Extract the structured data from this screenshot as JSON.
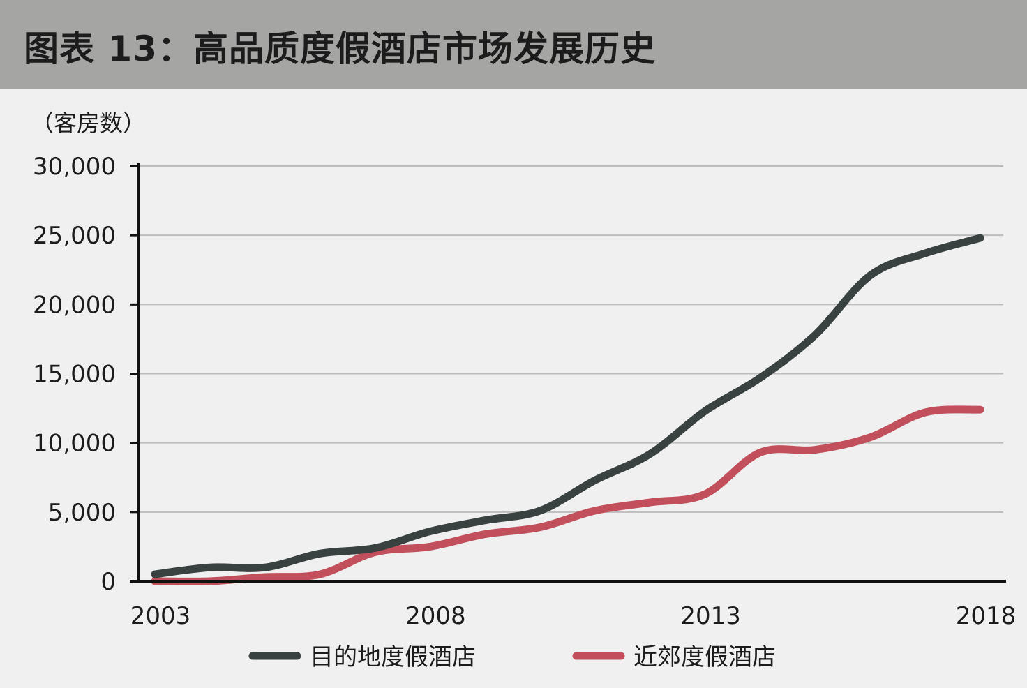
{
  "header": {
    "title": "图表 13：高品质度假酒店市场发展历史"
  },
  "chart_data": {
    "type": "line",
    "ylabel": "（客房数）",
    "xlabel": "",
    "x": [
      2003,
      2004,
      2005,
      2006,
      2007,
      2008,
      2009,
      2010,
      2011,
      2012,
      2013,
      2014,
      2015,
      2016,
      2017,
      2018
    ],
    "xticks": [
      "2003",
      "2008",
      "2013",
      "2018"
    ],
    "yticks": [
      "0",
      "5,000",
      "10,000",
      "15,000",
      "20,000",
      "25,000",
      "30,000"
    ],
    "ylim": [
      0,
      30000
    ],
    "grid": true,
    "legend_position": "bottom",
    "series": [
      {
        "name": "目的地度假酒店",
        "color": "#394240",
        "values": [
          500,
          1000,
          1000,
          2000,
          2400,
          3600,
          4400,
          5100,
          7300,
          9200,
          12300,
          14700,
          17800,
          22100,
          23700,
          24800
        ]
      },
      {
        "name": "近郊度假酒店",
        "color": "#c1505c",
        "values": [
          0,
          0,
          300,
          500,
          2100,
          2500,
          3400,
          3900,
          5100,
          5700,
          6300,
          9300,
          9500,
          10400,
          12200,
          12400
        ]
      }
    ]
  }
}
